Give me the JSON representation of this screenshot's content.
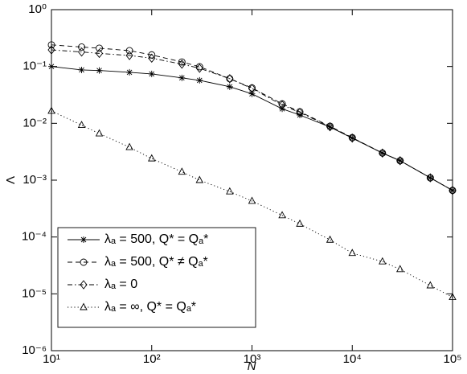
{
  "chart_data": {
    "type": "line",
    "log_x": true,
    "log_y": true,
    "x_label": "N",
    "y_label": "Λ",
    "x": [
      10,
      20,
      30,
      60,
      100,
      200,
      300,
      600,
      1000,
      2000,
      3000,
      6000,
      10000,
      20000,
      30000,
      60000,
      100000
    ],
    "xlim": [
      10,
      100000
    ],
    "xticks": [
      {
        "value": 10,
        "label": "10¹"
      },
      {
        "value": 100,
        "label": "10²"
      },
      {
        "value": 1000,
        "label": "10³"
      },
      {
        "value": 10000,
        "label": "10⁴"
      },
      {
        "value": 100000,
        "label": "10⁵"
      }
    ],
    "ylim": [
      1e-06,
      1
    ],
    "yticks": [
      {
        "value": 1e-06,
        "label": "10⁻⁶"
      },
      {
        "value": 1e-05,
        "label": "10⁻⁵"
      },
      {
        "value": 0.0001,
        "label": "10⁻⁴"
      },
      {
        "value": 0.001,
        "label": "10⁻³"
      },
      {
        "value": 0.01,
        "label": "10⁻²"
      },
      {
        "value": 0.1,
        "label": "10⁻¹"
      },
      {
        "value": 1,
        "label": "10⁰"
      }
    ],
    "legend": "lower left",
    "series": [
      {
        "name": "λₐ = 500,  Q* =  Qₐ*",
        "color": "#000000",
        "dash": "solid",
        "marker": "star",
        "values": [
          0.1,
          0.087,
          0.085,
          0.079,
          0.074,
          0.063,
          0.057,
          0.044,
          0.033,
          0.018,
          0.014,
          0.0086,
          0.0055,
          0.003,
          0.0022,
          0.0011,
          0.00066
        ]
      },
      {
        "name": "λₐ = 500,   Q* ≠  Qₐ*",
        "color": "#000000",
        "dash": "dashed",
        "marker": "circle",
        "values": [
          0.24,
          0.22,
          0.21,
          0.19,
          0.16,
          0.12,
          0.099,
          0.061,
          0.042,
          0.022,
          0.016,
          0.0089,
          0.0056,
          0.003,
          0.0022,
          0.0011,
          0.00066
        ]
      },
      {
        "name": "λₐ = 0",
        "color": "#000000",
        "dash": "dashdot",
        "marker": "diamond",
        "values": [
          0.196,
          0.18,
          0.17,
          0.156,
          0.14,
          0.11,
          0.093,
          0.061,
          0.041,
          0.021,
          0.0155,
          0.0087,
          0.0055,
          0.003,
          0.0022,
          0.0011,
          0.00066
        ]
      },
      {
        "name": "λₐ = ∞,  Q* =  Qₐ*",
        "color": "#000000",
        "dash": "dotted",
        "marker": "triangle",
        "values": [
          0.0165,
          0.0093,
          0.0066,
          0.0038,
          0.0024,
          0.0014,
          0.001,
          0.00063,
          0.00043,
          0.00024,
          0.00017,
          8.9e-05,
          5.2e-05,
          3.7e-05,
          2.7e-05,
          1.4e-05,
          8.7e-06
        ]
      }
    ]
  }
}
